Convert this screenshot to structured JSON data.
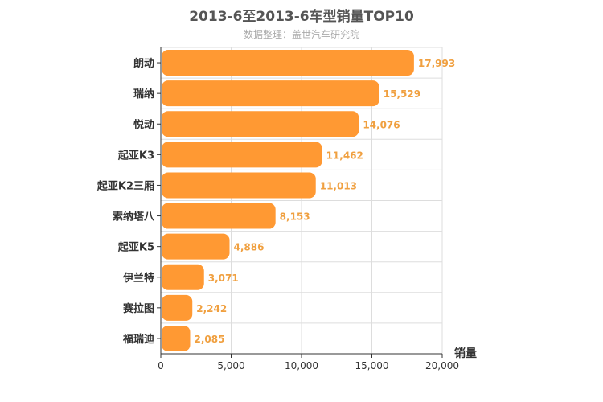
{
  "chart_data": {
    "type": "bar",
    "orientation": "horizontal",
    "title": "2013-6至2013-6车型销量TOP10",
    "subtitle": "数据整理：盖世汽车研究院",
    "categories": [
      "朗动",
      "瑞纳",
      "悦动",
      "起亚K3",
      "起亚K2三厢",
      "索纳塔八",
      "起亚K5",
      "伊兰特",
      "赛拉图",
      "福瑞迪"
    ],
    "values": [
      17993,
      15529,
      14076,
      11462,
      11013,
      8153,
      4886,
      3071,
      2242,
      2085
    ],
    "value_labels": [
      "17,993",
      "15,529",
      "14,076",
      "11,462",
      "11,013",
      "8,153",
      "4,886",
      "3,071",
      "2,242",
      "2,085"
    ],
    "xlabel": "销量",
    "xlim": [
      0,
      20000
    ],
    "xticks": [
      0,
      5000,
      10000,
      15000,
      20000
    ],
    "xtick_labels": [
      "0",
      "5,000",
      "10,000",
      "15,000",
      "20,000"
    ],
    "grid": true,
    "colors": {
      "bar": "#ff9933",
      "data_label": "#f0a040",
      "grid": "#dddddd",
      "axis": "#333333"
    }
  }
}
